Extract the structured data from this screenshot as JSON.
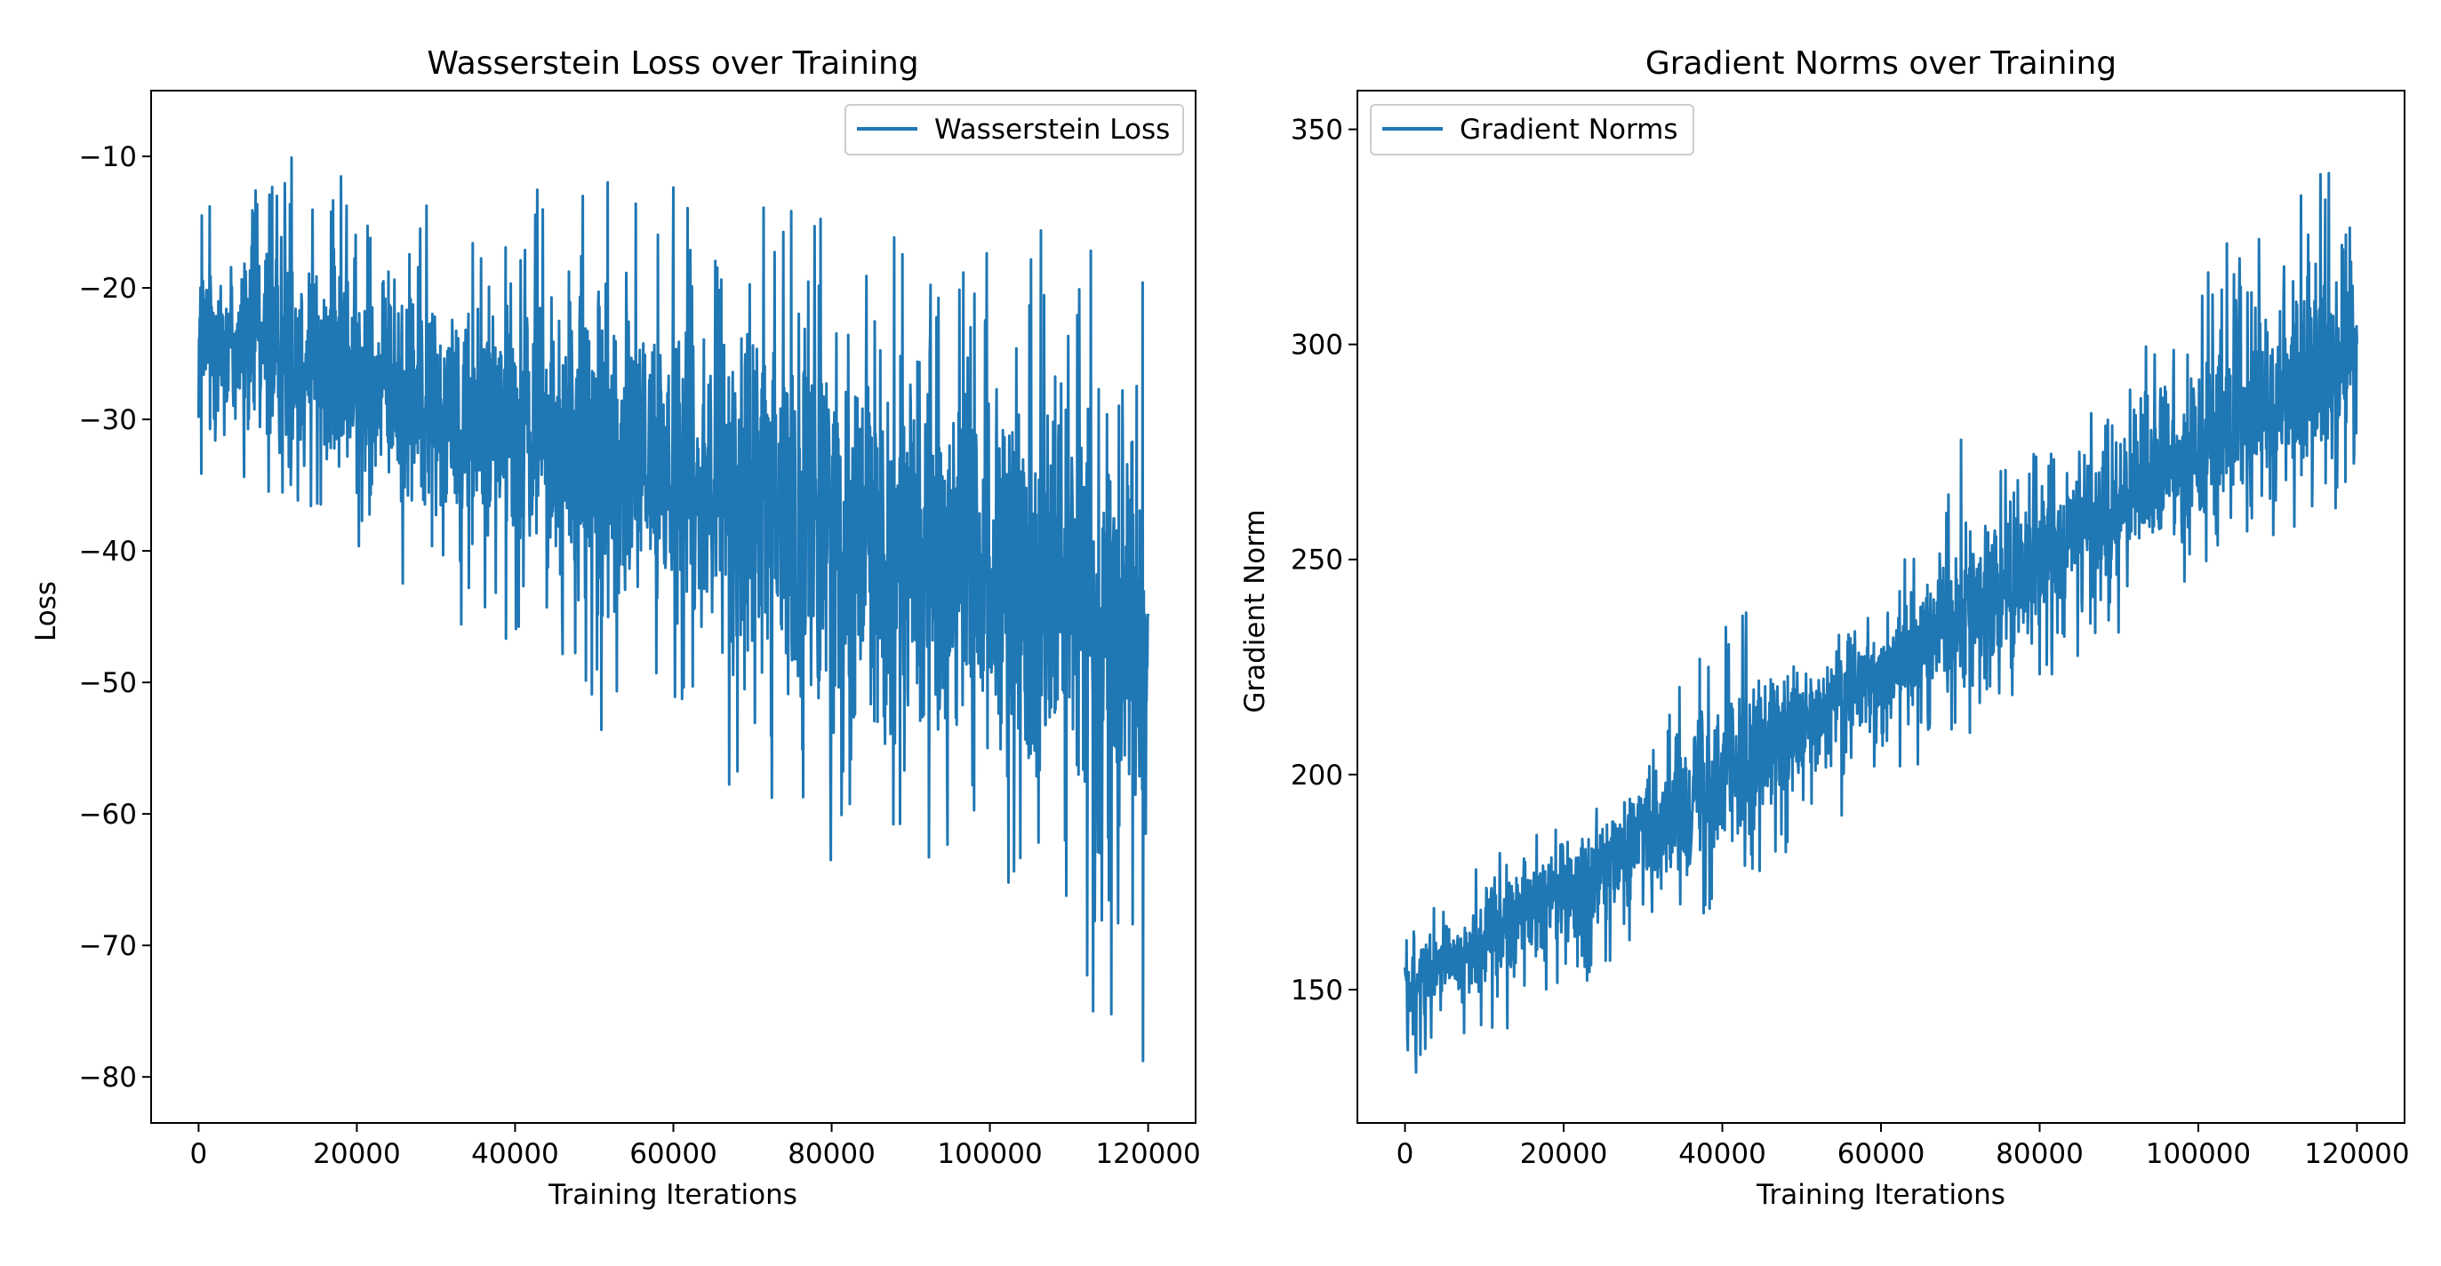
{
  "chart_data": [
    {
      "type": "line",
      "title": "Wasserstein Loss over Training",
      "xlabel": "Training Iterations",
      "ylabel": "Loss",
      "xlim": [
        -6000,
        126000
      ],
      "ylim": [
        -83.5,
        -5
      ],
      "xticks": [
        0,
        20000,
        40000,
        60000,
        80000,
        100000,
        120000
      ],
      "yticks": [
        -10,
        -20,
        -30,
        -40,
        -50,
        -60,
        -70,
        -80
      ],
      "ytick_labels": [
        "−10",
        "−20",
        "−30",
        "−40",
        "−50",
        "−60",
        "−70",
        "−80"
      ],
      "grid": false,
      "legend_position": "upper right",
      "color": "#1f77b4",
      "series": [
        {
          "name": "Wasserstein Loss",
          "x": [
            0,
            10000,
            20000,
            30000,
            40000,
            50000,
            60000,
            70000,
            80000,
            90000,
            100000,
            110000,
            120000
          ],
          "y_mean": [
            -24,
            -25,
            -27,
            -29,
            -31,
            -33,
            -34,
            -36,
            -38,
            -40,
            -42,
            -44,
            -46
          ],
          "y_min": [
            -36,
            -38,
            -40,
            -45,
            -47,
            -56,
            -52,
            -62,
            -66,
            -68,
            -70,
            -73,
            -80
          ],
          "y_max": [
            -11,
            -9,
            -11,
            -12,
            -12,
            -12,
            -11,
            -11,
            -14,
            -16,
            -17,
            -12,
            -20
          ]
        }
      ]
    },
    {
      "type": "line",
      "title": "Gradient Norms over Training",
      "xlabel": "Training Iterations",
      "ylabel": "Gradient Norm",
      "xlim": [
        -6000,
        126000
      ],
      "ylim": [
        119,
        359
      ],
      "xticks": [
        0,
        20000,
        40000,
        60000,
        80000,
        100000,
        120000
      ],
      "yticks": [
        150,
        200,
        250,
        300,
        350
      ],
      "grid": false,
      "legend_position": "upper left",
      "color": "#1f77b4",
      "series": [
        {
          "name": "Gradient Norms",
          "x": [
            0,
            10000,
            20000,
            30000,
            40000,
            50000,
            60000,
            70000,
            80000,
            90000,
            100000,
            110000,
            120000
          ],
          "y_mean": [
            150,
            162,
            175,
            187,
            200,
            212,
            225,
            237,
            250,
            262,
            275,
            287,
            300
          ],
          "y_min": [
            128,
            138,
            148,
            160,
            170,
            182,
            195,
            208,
            220,
            232,
            245,
            255,
            263
          ],
          "y_max": [
            165,
            180,
            190,
            205,
            246,
            230,
            240,
            278,
            280,
            290,
            318,
            335,
            348
          ]
        }
      ]
    }
  ]
}
